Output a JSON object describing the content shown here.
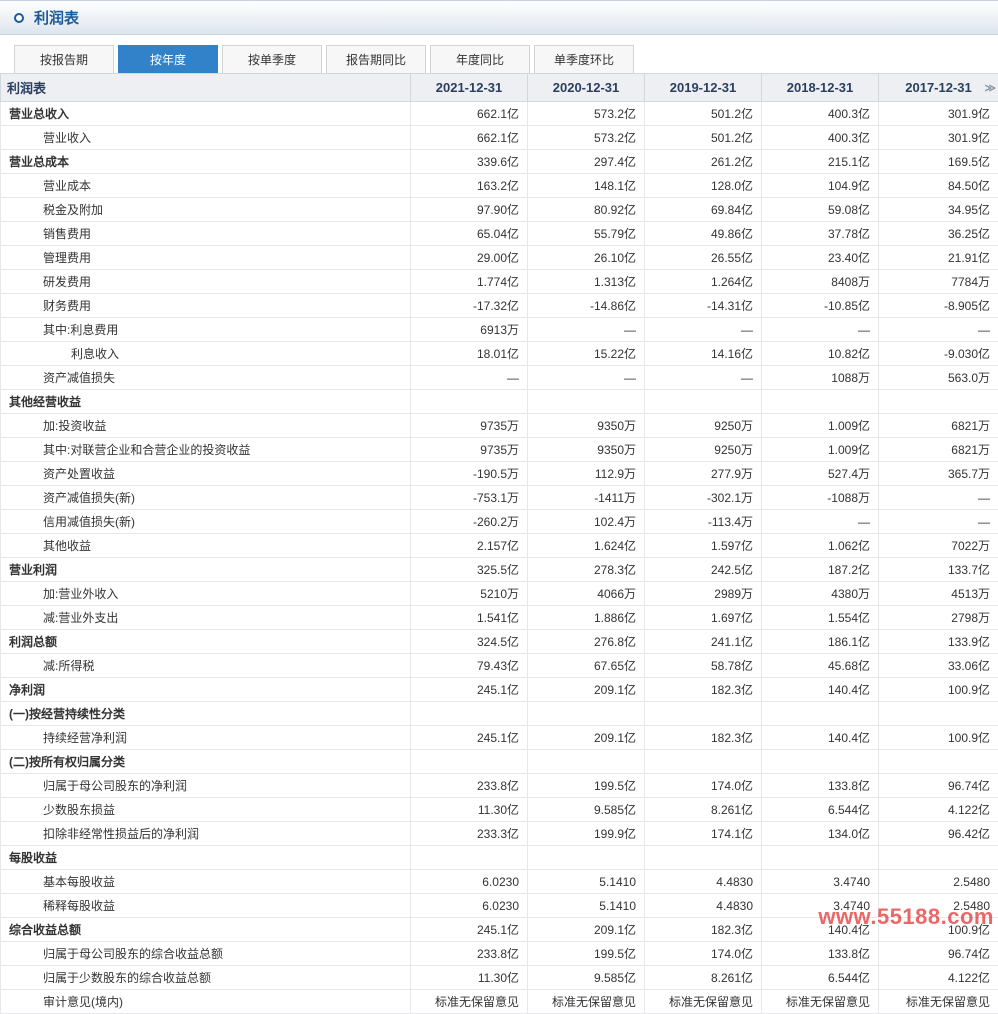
{
  "title": "利润表",
  "tabs": [
    "按报告期",
    "按年度",
    "按单季度",
    "报告期同比",
    "年度同比",
    "单季度环比"
  ],
  "active_tab": 1,
  "columns": [
    "利润表",
    "2021-12-31",
    "2020-12-31",
    "2019-12-31",
    "2018-12-31",
    "2017-12-31"
  ],
  "col_widths": [
    "410px",
    "117px",
    "117px",
    "117px",
    "117px",
    "120px"
  ],
  "header_bg": "#edeff2",
  "header_border": "#d3d7dd",
  "active_tab_bg": "#3182c9",
  "title_color": "#1e5a99",
  "watermark": "www.55188.com",
  "rows": [
    {
      "label": "营业总收入",
      "bold": true,
      "indent": 0,
      "v": [
        "662.1亿",
        "573.2亿",
        "501.2亿",
        "400.3亿",
        "301.9亿"
      ]
    },
    {
      "label": "营业收入",
      "bold": false,
      "indent": 1,
      "v": [
        "662.1亿",
        "573.2亿",
        "501.2亿",
        "400.3亿",
        "301.9亿"
      ]
    },
    {
      "label": "营业总成本",
      "bold": true,
      "indent": 0,
      "v": [
        "339.6亿",
        "297.4亿",
        "261.2亿",
        "215.1亿",
        "169.5亿"
      ]
    },
    {
      "label": "营业成本",
      "bold": false,
      "indent": 1,
      "v": [
        "163.2亿",
        "148.1亿",
        "128.0亿",
        "104.9亿",
        "84.50亿"
      ]
    },
    {
      "label": "税金及附加",
      "bold": false,
      "indent": 1,
      "v": [
        "97.90亿",
        "80.92亿",
        "69.84亿",
        "59.08亿",
        "34.95亿"
      ]
    },
    {
      "label": "销售费用",
      "bold": false,
      "indent": 1,
      "v": [
        "65.04亿",
        "55.79亿",
        "49.86亿",
        "37.78亿",
        "36.25亿"
      ]
    },
    {
      "label": "管理费用",
      "bold": false,
      "indent": 1,
      "v": [
        "29.00亿",
        "26.10亿",
        "26.55亿",
        "23.40亿",
        "21.91亿"
      ]
    },
    {
      "label": "研发费用",
      "bold": false,
      "indent": 1,
      "v": [
        "1.774亿",
        "1.313亿",
        "1.264亿",
        "8408万",
        "7784万"
      ]
    },
    {
      "label": "财务费用",
      "bold": false,
      "indent": 1,
      "v": [
        "-17.32亿",
        "-14.86亿",
        "-14.31亿",
        "-10.85亿",
        "-8.905亿"
      ]
    },
    {
      "label": "其中:利息费用",
      "bold": false,
      "indent": 1,
      "v": [
        "6913万",
        "—",
        "—",
        "—",
        "—"
      ]
    },
    {
      "label": "利息收入",
      "bold": false,
      "indent": 2,
      "v": [
        "18.01亿",
        "15.22亿",
        "14.16亿",
        "10.82亿",
        "-9.030亿"
      ]
    },
    {
      "label": "资产减值损失",
      "bold": false,
      "indent": 1,
      "v": [
        "—",
        "—",
        "—",
        "1088万",
        "563.0万"
      ]
    },
    {
      "label": "其他经营收益",
      "bold": true,
      "indent": 0,
      "v": [
        "",
        "",
        "",
        "",
        ""
      ]
    },
    {
      "label": "加:投资收益",
      "bold": false,
      "indent": 1,
      "v": [
        "9735万",
        "9350万",
        "9250万",
        "1.009亿",
        "6821万"
      ]
    },
    {
      "label": "其中:对联营企业和合营企业的投资收益",
      "bold": false,
      "indent": 1,
      "v": [
        "9735万",
        "9350万",
        "9250万",
        "1.009亿",
        "6821万"
      ]
    },
    {
      "label": "资产处置收益",
      "bold": false,
      "indent": 1,
      "v": [
        "-190.5万",
        "112.9万",
        "277.9万",
        "527.4万",
        "365.7万"
      ]
    },
    {
      "label": "资产减值损失(新)",
      "bold": false,
      "indent": 1,
      "v": [
        "-753.1万",
        "-1411万",
        "-302.1万",
        "-1088万",
        "—"
      ]
    },
    {
      "label": "信用减值损失(新)",
      "bold": false,
      "indent": 1,
      "v": [
        "-260.2万",
        "102.4万",
        "-113.4万",
        "—",
        "—"
      ]
    },
    {
      "label": "其他收益",
      "bold": false,
      "indent": 1,
      "v": [
        "2.157亿",
        "1.624亿",
        "1.597亿",
        "1.062亿",
        "7022万"
      ]
    },
    {
      "label": "营业利润",
      "bold": true,
      "indent": 0,
      "v": [
        "325.5亿",
        "278.3亿",
        "242.5亿",
        "187.2亿",
        "133.7亿"
      ]
    },
    {
      "label": "加:营业外收入",
      "bold": false,
      "indent": 1,
      "v": [
        "5210万",
        "4066万",
        "2989万",
        "4380万",
        "4513万"
      ]
    },
    {
      "label": "减:营业外支出",
      "bold": false,
      "indent": 1,
      "v": [
        "1.541亿",
        "1.886亿",
        "1.697亿",
        "1.554亿",
        "2798万"
      ]
    },
    {
      "label": "利润总额",
      "bold": true,
      "indent": 0,
      "v": [
        "324.5亿",
        "276.8亿",
        "241.1亿",
        "186.1亿",
        "133.9亿"
      ]
    },
    {
      "label": "减:所得税",
      "bold": false,
      "indent": 1,
      "v": [
        "79.43亿",
        "67.65亿",
        "58.78亿",
        "45.68亿",
        "33.06亿"
      ]
    },
    {
      "label": "净利润",
      "bold": true,
      "indent": 0,
      "v": [
        "245.1亿",
        "209.1亿",
        "182.3亿",
        "140.4亿",
        "100.9亿"
      ]
    },
    {
      "label": "(一)按经营持续性分类",
      "bold": true,
      "indent": 0,
      "v": [
        "",
        "",
        "",
        "",
        ""
      ]
    },
    {
      "label": "持续经营净利润",
      "bold": false,
      "indent": 1,
      "v": [
        "245.1亿",
        "209.1亿",
        "182.3亿",
        "140.4亿",
        "100.9亿"
      ]
    },
    {
      "label": "(二)按所有权归属分类",
      "bold": true,
      "indent": 0,
      "v": [
        "",
        "",
        "",
        "",
        ""
      ]
    },
    {
      "label": "归属于母公司股东的净利润",
      "bold": false,
      "indent": 1,
      "v": [
        "233.8亿",
        "199.5亿",
        "174.0亿",
        "133.8亿",
        "96.74亿"
      ]
    },
    {
      "label": "少数股东损益",
      "bold": false,
      "indent": 1,
      "v": [
        "11.30亿",
        "9.585亿",
        "8.261亿",
        "6.544亿",
        "4.122亿"
      ]
    },
    {
      "label": "扣除非经常性损益后的净利润",
      "bold": false,
      "indent": 1,
      "v": [
        "233.3亿",
        "199.9亿",
        "174.1亿",
        "134.0亿",
        "96.42亿"
      ]
    },
    {
      "label": "每股收益",
      "bold": true,
      "indent": 0,
      "v": [
        "",
        "",
        "",
        "",
        ""
      ]
    },
    {
      "label": "基本每股收益",
      "bold": false,
      "indent": 1,
      "v": [
        "6.0230",
        "5.1410",
        "4.4830",
        "3.4740",
        "2.5480"
      ]
    },
    {
      "label": "稀释每股收益",
      "bold": false,
      "indent": 1,
      "v": [
        "6.0230",
        "5.1410",
        "4.4830",
        "3.4740",
        "2.5480"
      ]
    },
    {
      "label": "综合收益总额",
      "bold": true,
      "indent": 0,
      "v": [
        "245.1亿",
        "209.1亿",
        "182.3亿",
        "140.4亿",
        "100.9亿"
      ]
    },
    {
      "label": "归属于母公司股东的综合收益总额",
      "bold": false,
      "indent": 1,
      "v": [
        "233.8亿",
        "199.5亿",
        "174.0亿",
        "133.8亿",
        "96.74亿"
      ]
    },
    {
      "label": "归属于少数股东的综合收益总额",
      "bold": false,
      "indent": 1,
      "v": [
        "11.30亿",
        "9.585亿",
        "8.261亿",
        "6.544亿",
        "4.122亿"
      ]
    },
    {
      "label": "审计意见(境内)",
      "bold": false,
      "indent": 1,
      "v": [
        "标准无保留意见",
        "标准无保留意见",
        "标准无保留意见",
        "标准无保留意见",
        "标准无保留意见"
      ]
    }
  ]
}
